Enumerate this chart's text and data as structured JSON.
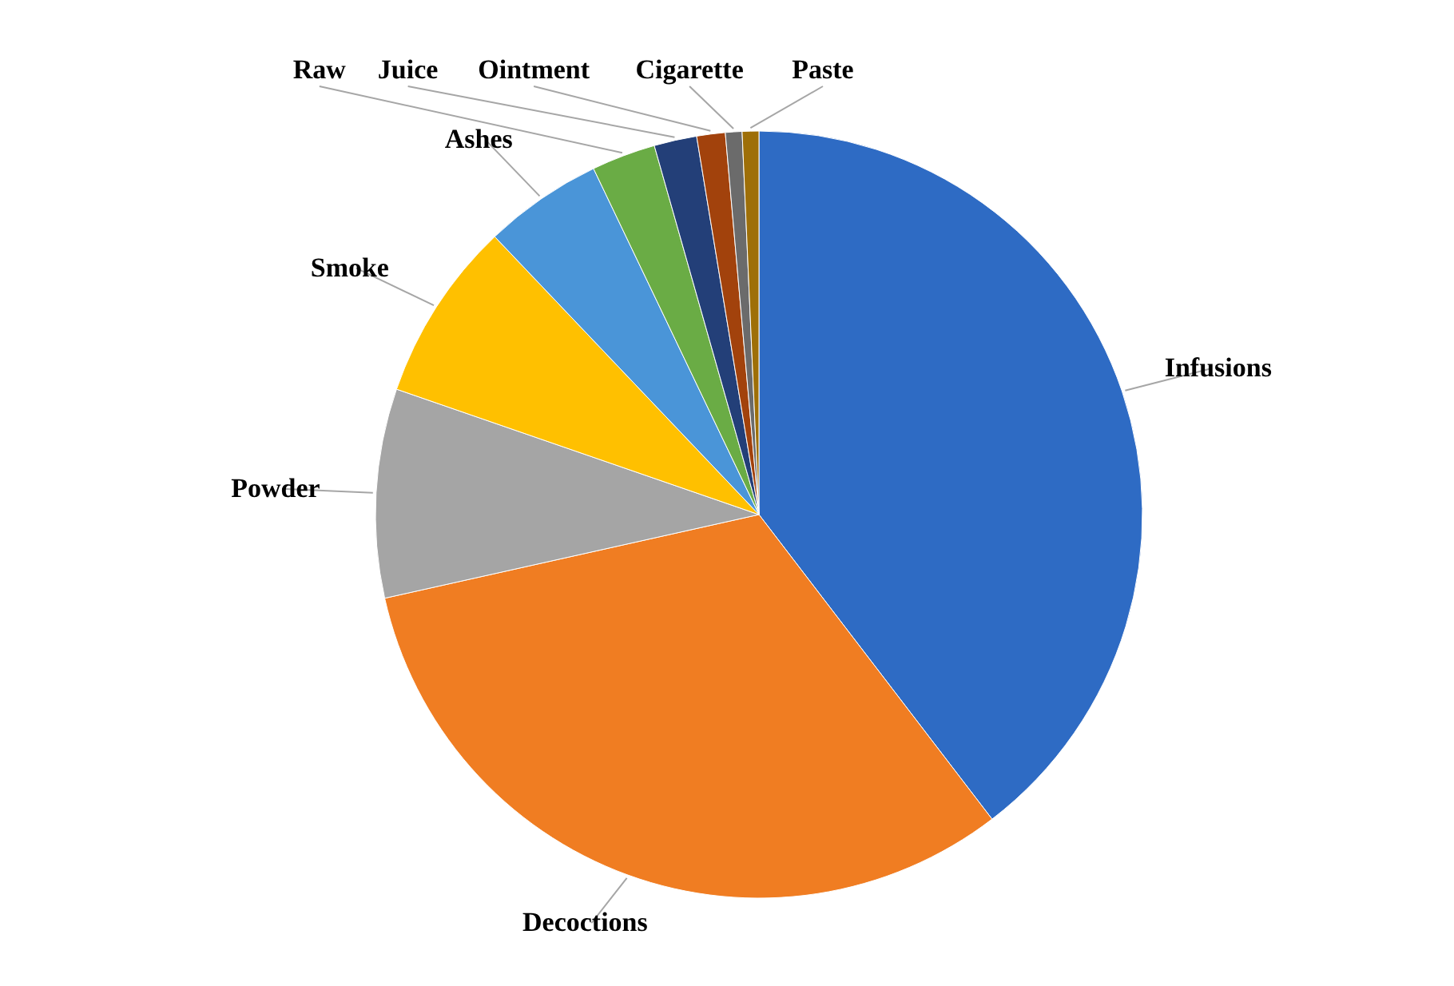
{
  "chart_data": {
    "type": "pie",
    "categories": [
      "Infusions",
      "Decoctions",
      "Powder",
      "Smoke",
      "Ashes",
      "Raw",
      "Juice",
      "Ointment",
      "Cigarette",
      "Paste"
    ],
    "values": [
      39.6,
      31.9,
      8.8,
      7.6,
      5.0,
      2.7,
      1.8,
      1.2,
      0.7,
      0.7
    ],
    "colors": [
      "#2e6bc4",
      "#f07d22",
      "#a5a5a5",
      "#ffc000",
      "#4a95d8",
      "#6aac45",
      "#233f78",
      "#a2420c",
      "#6b6b6b",
      "#9e6f08"
    ]
  }
}
